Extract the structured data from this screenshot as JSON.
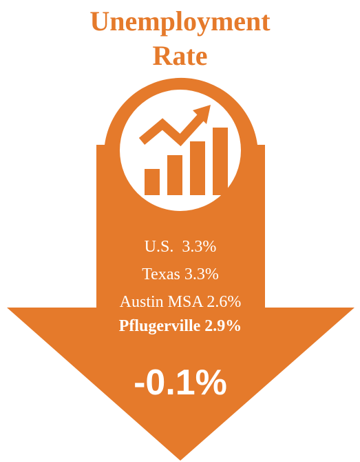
{
  "title": "Unemployment Rate",
  "rates": [
    "U.S.  3.3%",
    "Texas 3.3%",
    "Austin MSA 2.6%",
    "Pflugerville 2.9%"
  ],
  "change": "-0.1%"
}
